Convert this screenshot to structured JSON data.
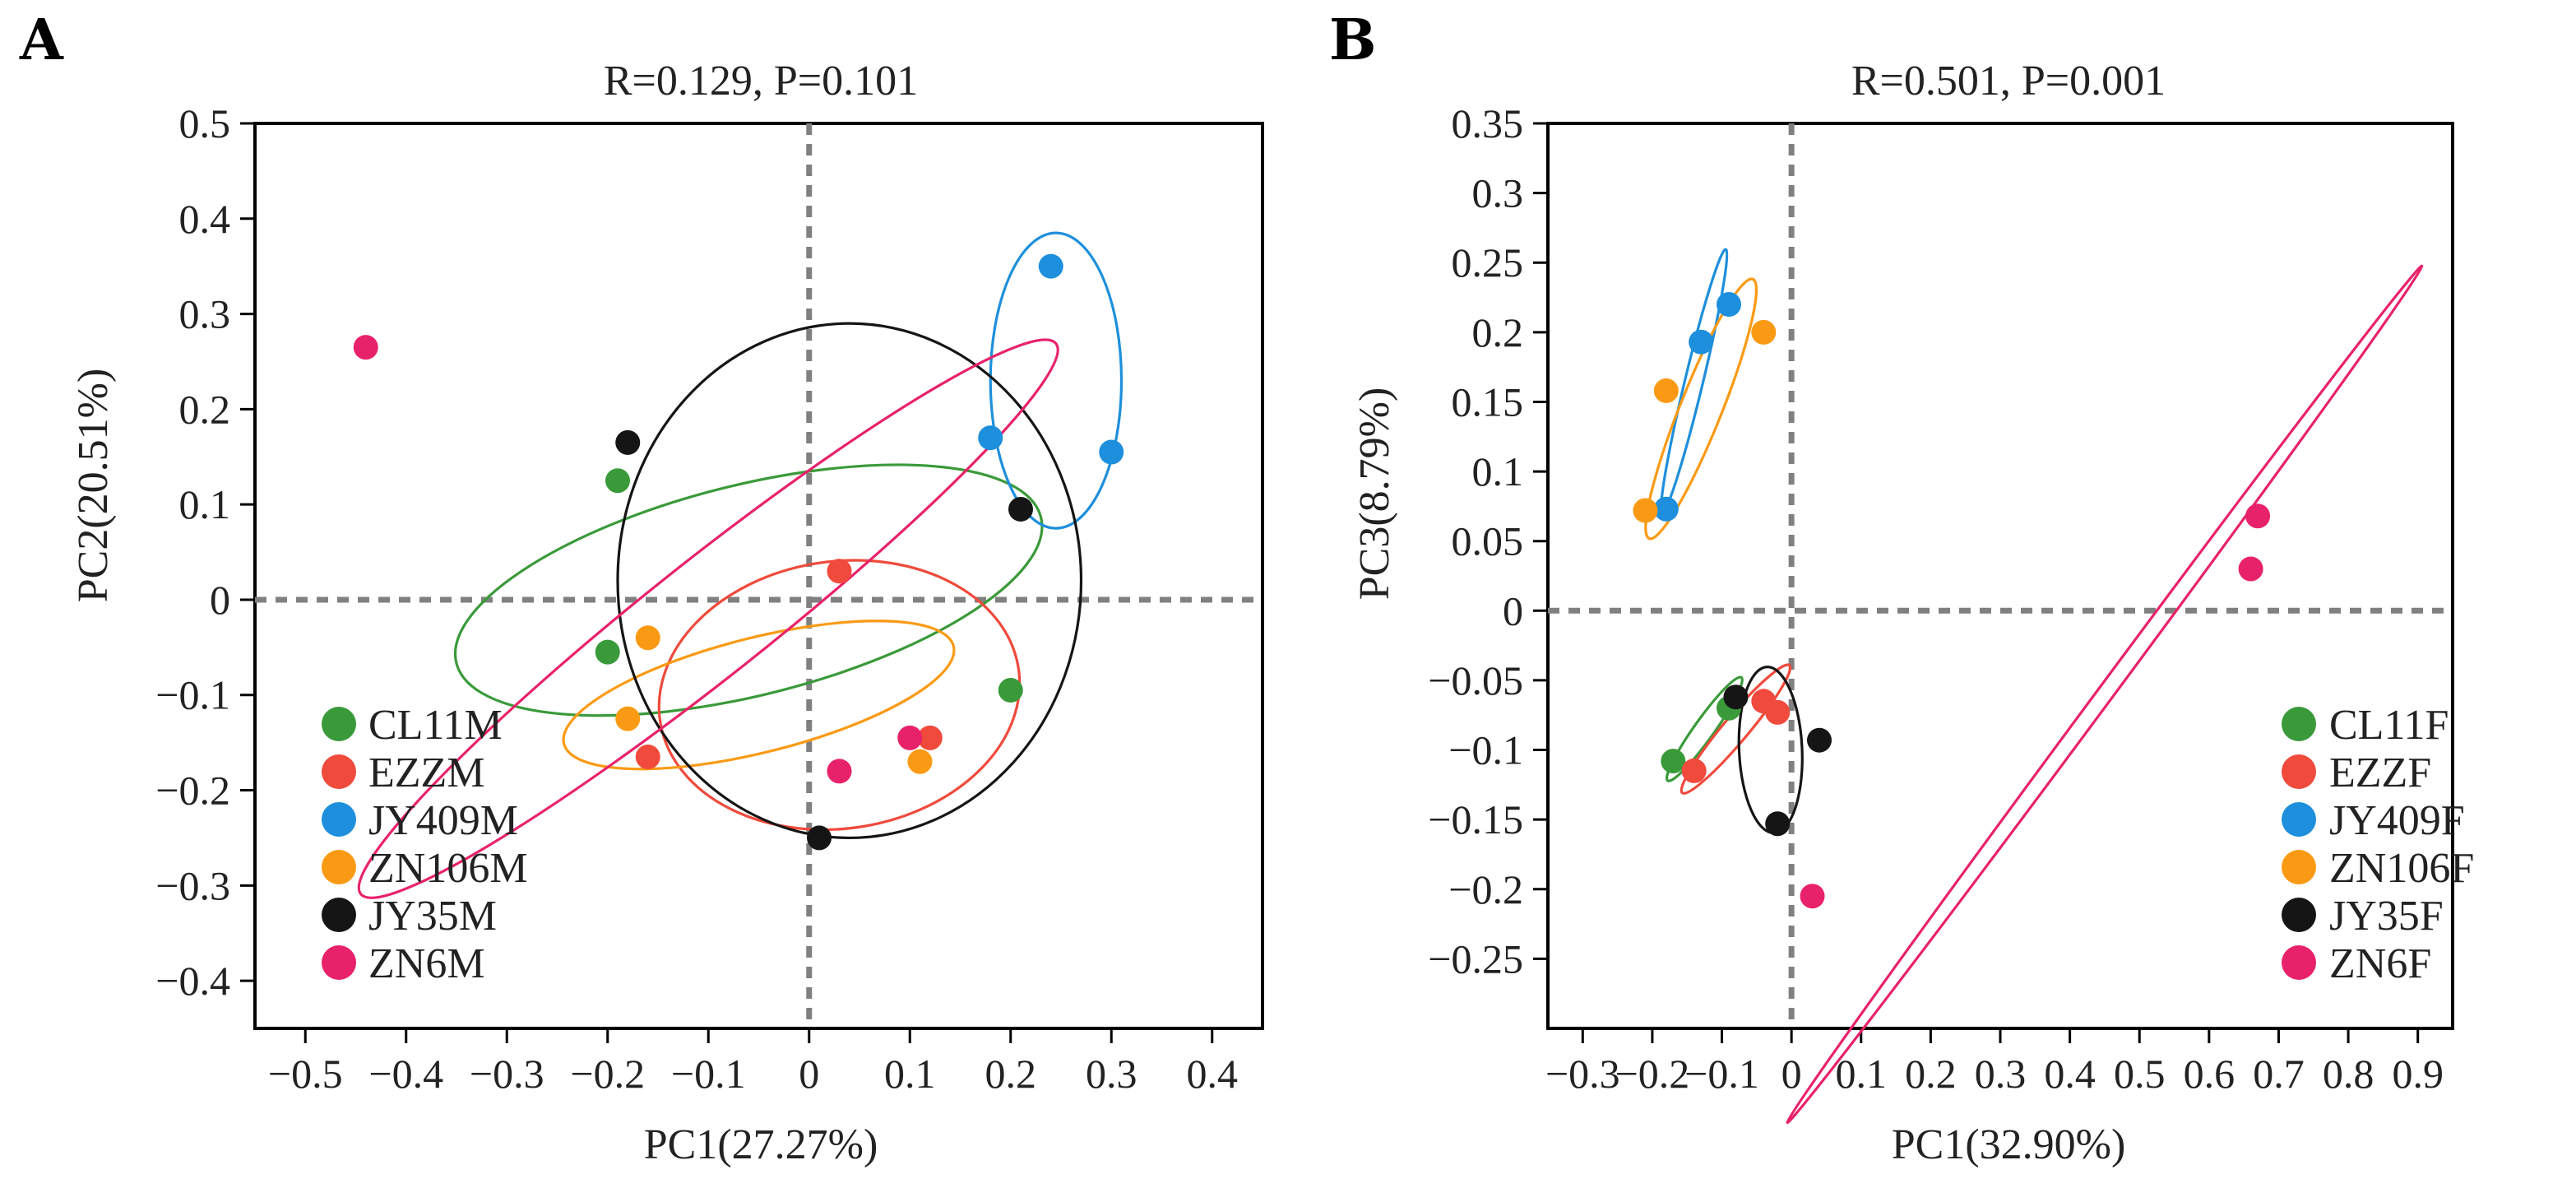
{
  "colors": {
    "CL11": "#3a9a3a",
    "EZZ": "#f04a3c",
    "JY409": "#1e8fdc",
    "ZN106": "#fa9a14",
    "JY35": "#151515",
    "ZN6": "#e8226a"
  },
  "chart_data": [
    {
      "type": "scatter",
      "panel": "A",
      "stat_label": "R=0.129, P=0.101",
      "xlabel": "PC1(27.27%)",
      "ylabel": "PC2(20.51%)",
      "xlim": [
        -0.55,
        0.45
      ],
      "ylim": [
        -0.45,
        0.5
      ],
      "x_ticks": [
        -0.5,
        -0.4,
        -0.3,
        -0.2,
        -0.1,
        0,
        0.1,
        0.2,
        0.3,
        0.4
      ],
      "x_tick_labels": [
        "−0.5",
        "−0.4",
        "−0.3",
        "−0.2",
        "−0.1",
        "0",
        "0.1",
        "0.2",
        "0.3",
        "0.4"
      ],
      "y_ticks": [
        -0.4,
        -0.3,
        -0.2,
        -0.1,
        0,
        0.1,
        0.2,
        0.3,
        0.4,
        0.5
      ],
      "y_tick_labels": [
        "−0.4",
        "−0.3",
        "−0.2",
        "−0.1",
        "0",
        "0.1",
        "0.2",
        "0.3",
        "0.4",
        "0.5"
      ],
      "legend_position": "bottom-left",
      "series": [
        {
          "name": "CL11M",
          "color_key": "CL11",
          "points": [
            [
              -0.19,
              0.125
            ],
            [
              -0.2,
              -0.055
            ],
            [
              0.2,
              -0.095
            ]
          ],
          "ellipse": {
            "cx": -0.06,
            "cy": 0.01,
            "rx": 0.3,
            "ry": 0.11,
            "angle": 15
          }
        },
        {
          "name": "EZZM",
          "color_key": "EZZ",
          "points": [
            [
              0.03,
              0.03
            ],
            [
              -0.16,
              -0.165
            ],
            [
              0.12,
              -0.145
            ]
          ],
          "ellipse": {
            "cx": 0.03,
            "cy": -0.1,
            "rx": 0.18,
            "ry": 0.14,
            "angle": 10
          }
        },
        {
          "name": "JY409M",
          "color_key": "JY409",
          "points": [
            [
              0.24,
              0.35
            ],
            [
              0.18,
              0.17
            ],
            [
              0.3,
              0.155
            ]
          ],
          "ellipse": {
            "cx": 0.245,
            "cy": 0.23,
            "rx": 0.065,
            "ry": 0.155,
            "angle": 0
          }
        },
        {
          "name": "ZN106M",
          "color_key": "ZN106",
          "points": [
            [
              -0.16,
              -0.04
            ],
            [
              -0.18,
              -0.125
            ],
            [
              0.11,
              -0.17
            ]
          ],
          "ellipse": {
            "cx": -0.05,
            "cy": -0.1,
            "rx": 0.2,
            "ry": 0.06,
            "angle": 15
          }
        },
        {
          "name": "JY35M",
          "color_key": "JY35",
          "points": [
            [
              -0.18,
              0.165
            ],
            [
              0.21,
              0.095
            ],
            [
              0.01,
              -0.25
            ]
          ],
          "ellipse": {
            "cx": 0.04,
            "cy": 0.02,
            "rx": 0.23,
            "ry": 0.27,
            "angle": 0
          }
        },
        {
          "name": "ZN6M",
          "color_key": "ZN6",
          "points": [
            [
              -0.44,
              0.265
            ],
            [
              0.1,
              -0.145
            ],
            [
              0.03,
              -0.18
            ]
          ],
          "ellipse": {
            "cx": -0.1,
            "cy": -0.02,
            "rx": 0.45,
            "ry": 0.06,
            "angle": 40
          }
        }
      ]
    },
    {
      "type": "scatter",
      "panel": "B",
      "stat_label": "R=0.501, P=0.001",
      "xlabel": "PC1(32.90%)",
      "ylabel": "PC3(8.79%)",
      "xlim": [
        -0.35,
        0.95
      ],
      "ylim": [
        -0.3,
        0.35
      ],
      "x_ticks": [
        -0.3,
        -0.2,
        -0.1,
        0,
        0.1,
        0.2,
        0.3,
        0.4,
        0.5,
        0.6,
        0.7,
        0.8,
        0.9
      ],
      "x_tick_labels": [
        "−0.3",
        "−0.2",
        "−0.1",
        "0",
        "0.1",
        "0.2",
        "0.3",
        "0.4",
        "0.5",
        "0.6",
        "0.7",
        "0.8",
        "0.9"
      ],
      "y_ticks": [
        -0.25,
        -0.2,
        -0.15,
        -0.1,
        -0.05,
        0,
        0.05,
        0.1,
        0.15,
        0.2,
        0.25,
        0.3,
        0.35
      ],
      "y_tick_labels": [
        "−0.25",
        "−0.2",
        "−0.15",
        "−0.1",
        "−0.05",
        "0",
        "0.05",
        "0.1",
        "0.15",
        "0.2",
        "0.25",
        "0.3",
        "0.35"
      ],
      "legend_position": "bottom-right",
      "series": [
        {
          "name": "CL11F",
          "color_key": "CL11",
          "points": [
            [
              -0.17,
              -0.108
            ],
            [
              -0.09,
              -0.07
            ]
          ],
          "ellipse": {
            "cx": -0.125,
            "cy": -0.085,
            "rx": 0.065,
            "ry": 0.01,
            "angle": 34
          }
        },
        {
          "name": "EZZF",
          "color_key": "EZZ",
          "points": [
            [
              -0.14,
              -0.115
            ],
            [
              -0.04,
              -0.065
            ],
            [
              -0.02,
              -0.073
            ]
          ],
          "ellipse": {
            "cx": -0.08,
            "cy": -0.085,
            "rx": 0.09,
            "ry": 0.012,
            "angle": 30
          }
        },
        {
          "name": "JY409F",
          "color_key": "JY409",
          "points": [
            [
              -0.18,
              0.073
            ],
            [
              -0.13,
              0.193
            ],
            [
              -0.09,
              0.22
            ]
          ],
          "ellipse": {
            "cx": -0.14,
            "cy": 0.165,
            "rx": 0.105,
            "ry": 0.012,
            "angle": 64
          }
        },
        {
          "name": "ZN106F",
          "color_key": "ZN106",
          "points": [
            [
              -0.21,
              0.072
            ],
            [
              -0.18,
              0.158
            ],
            [
              -0.04,
              0.2
            ]
          ],
          "ellipse": {
            "cx": -0.13,
            "cy": 0.145,
            "rx": 0.12,
            "ry": 0.025,
            "angle": 50
          }
        },
        {
          "name": "JY35F",
          "color_key": "JY35",
          "points": [
            [
              -0.08,
              -0.062
            ],
            [
              0.04,
              -0.093
            ],
            [
              -0.02,
              -0.153
            ]
          ],
          "ellipse": {
            "cx": -0.03,
            "cy": -0.1,
            "rx": 0.045,
            "ry": 0.06,
            "angle": 10
          }
        },
        {
          "name": "ZN6F",
          "color_key": "ZN6",
          "points": [
            [
              0.67,
              0.068
            ],
            [
              0.66,
              0.03
            ],
            [
              0.03,
              -0.205
            ]
          ],
          "ellipse": {
            "cx": 0.45,
            "cy": -0.06,
            "rx": 0.55,
            "ry": 0.008,
            "angle": 34
          }
        }
      ]
    }
  ]
}
